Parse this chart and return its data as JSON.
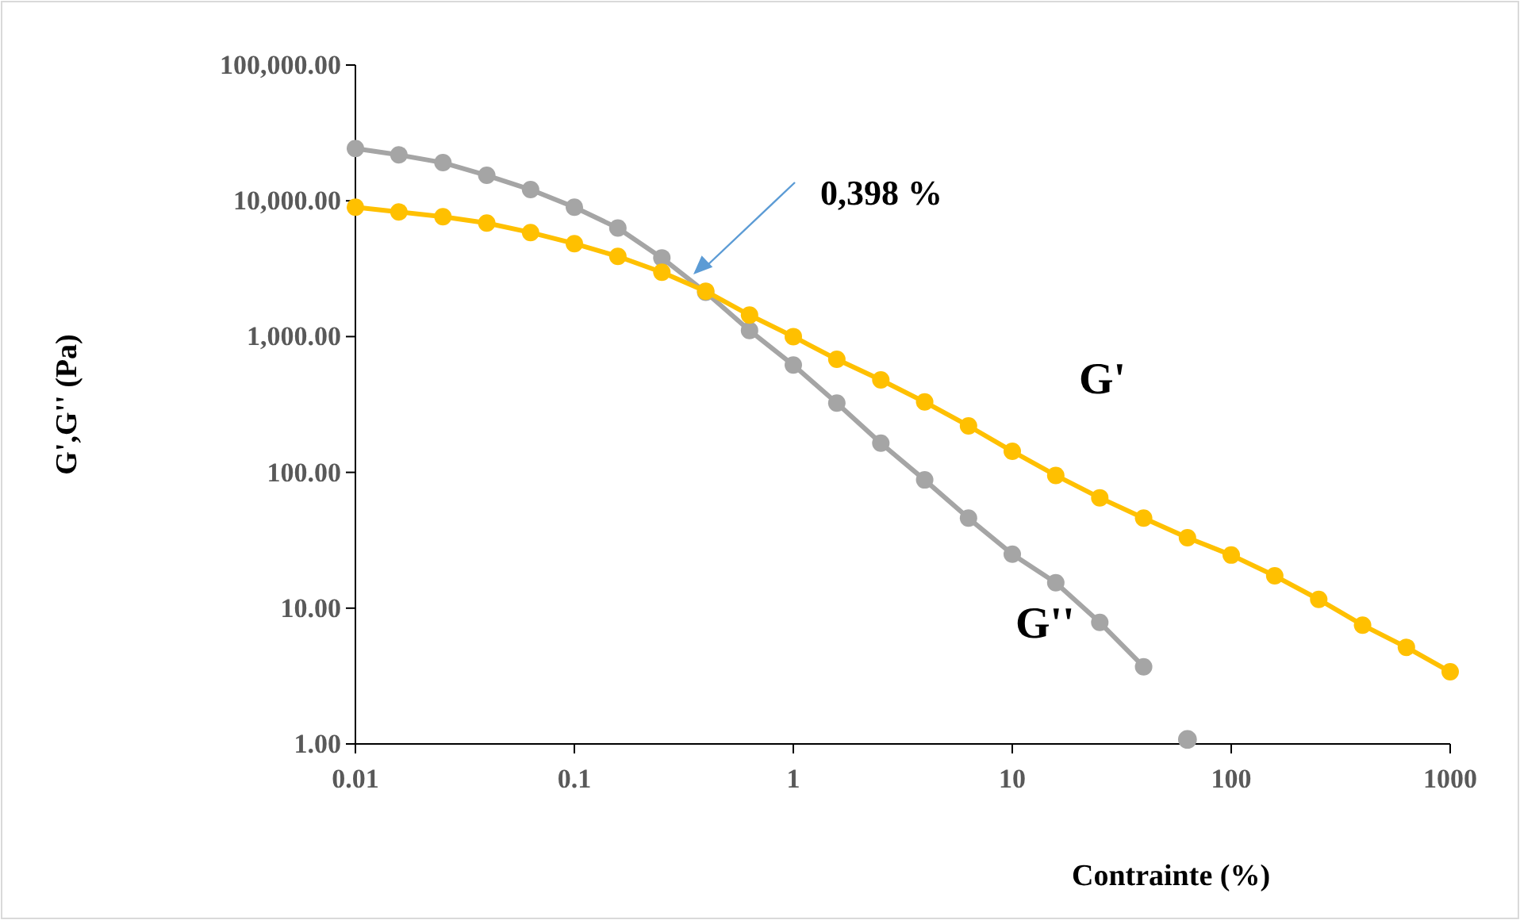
{
  "chart_data": {
    "type": "line",
    "xlabel": "Contrainte (%)",
    "ylabel": "G',G'' (Pa)",
    "log": "xy",
    "grid": false,
    "marker": "circle",
    "line_style": "solid",
    "xlim": [
      0.01,
      1000
    ],
    "xticks": [
      0.01,
      0.1,
      1,
      10,
      100,
      1000
    ],
    "ylim": [
      1,
      100000
    ],
    "yticks": [
      {
        "value": 1,
        "label": "1.00"
      },
      {
        "value": 10,
        "label": "10.00"
      },
      {
        "value": 100,
        "label": "100.00"
      },
      {
        "value": 1000,
        "label": "1,000.00"
      },
      {
        "value": 10000,
        "label": "10,000.00"
      },
      {
        "value": 100000,
        "label": "100,000.00"
      }
    ],
    "x": [
      0.01,
      0.0158,
      0.0251,
      0.0398,
      0.0631,
      0.1,
      0.158,
      0.251,
      0.398,
      0.631,
      1,
      1.58,
      2.51,
      3.98,
      6.31,
      10,
      15.8,
      25.1,
      39.8,
      63.1,
      100,
      158,
      251,
      398,
      631,
      1000
    ],
    "series": [
      {
        "name": "G'",
        "color": "#ffc000",
        "values": [
          8980,
          8280,
          7640,
          6860,
          5840,
          4840,
          3900,
          2980,
          2160,
          1440,
          1000,
          680,
          480,
          330,
          220,
          143,
          95,
          65,
          46,
          33,
          24.6,
          17.3,
          11.6,
          7.5,
          5.15,
          3.4
        ]
      },
      {
        "name": "G''",
        "color": "#a5a5a5",
        "x": [
          0.01,
          0.0158,
          0.0251,
          0.0398,
          0.0631,
          0.1,
          0.158,
          0.251,
          0.398,
          0.631,
          1,
          1.58,
          2.51,
          3.98,
          6.31,
          10,
          15.8,
          25.1,
          39.8
        ],
        "values": [
          24300,
          21800,
          19100,
          15400,
          12100,
          8980,
          6300,
          3800,
          2120,
          1110,
          617,
          324,
          164,
          88,
          46,
          25,
          15.4,
          7.85,
          3.7
        ]
      },
      {
        "type": "scatter",
        "color": "#a5a5a5",
        "x": [
          63.1
        ],
        "values": [
          1.08
        ]
      }
    ],
    "annotations": [
      "0,398 %"
    ]
  }
}
